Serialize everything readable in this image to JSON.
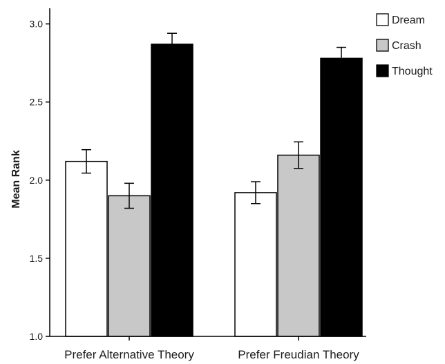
{
  "chart_data": {
    "type": "bar",
    "categories": [
      "Prefer Alternative Theory",
      "Prefer Freudian Theory"
    ],
    "series": [
      {
        "name": "Dream",
        "values": [
          2.12,
          1.92
        ],
        "errors": [
          0.075,
          0.07
        ],
        "color": "#ffffff"
      },
      {
        "name": "Crash",
        "values": [
          1.9,
          2.16
        ],
        "errors": [
          0.08,
          0.085
        ],
        "color": "#c8c8c8"
      },
      {
        "name": "Thought",
        "values": [
          2.87,
          2.78
        ],
        "errors": [
          0.07,
          0.07
        ],
        "color": "#000000"
      }
    ],
    "ylabel": "Mean Rank",
    "xlabel": "",
    "ylim": [
      1.0,
      3.1
    ],
    "yticks": [
      "1.0",
      "1.5",
      "2.0",
      "2.5",
      "3.0"
    ],
    "grid": false,
    "legend_position": "top-right"
  }
}
